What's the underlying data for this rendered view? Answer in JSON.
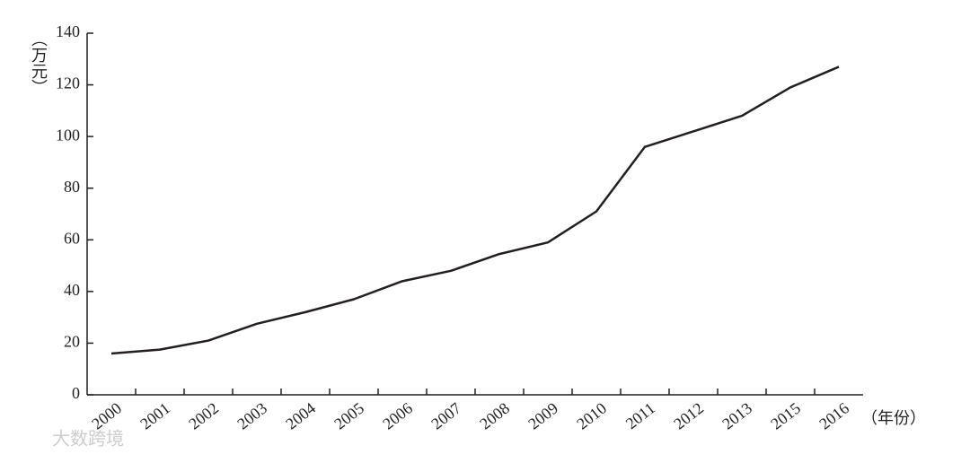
{
  "chart_data": {
    "type": "line",
    "y_label": "（万元）",
    "x_label": "（年份）",
    "watermark": "大数跨境",
    "categories": [
      "2000",
      "2001",
      "2002",
      "2003",
      "2004",
      "2005",
      "2006",
      "2007",
      "2008",
      "2009",
      "2010",
      "2011",
      "2012",
      "2013",
      "2015",
      "2016"
    ],
    "values": [
      16,
      17.5,
      21,
      27.5,
      32,
      37,
      44,
      48,
      54.5,
      59,
      71,
      96,
      102,
      108,
      119,
      127
    ],
    "color": "#231f20",
    "ylim": [
      0,
      140
    ],
    "yticks": [
      0,
      20,
      40,
      60,
      80,
      100,
      120,
      140
    ]
  }
}
